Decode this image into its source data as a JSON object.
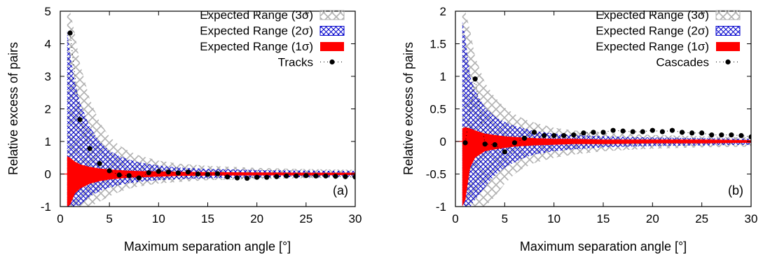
{
  "chart_data": [
    {
      "type": "line",
      "panel_label": "(a)",
      "xlabel": "Maximum separation angle [°]",
      "ylabel": "Relative excess of pairs",
      "xlim": [
        0,
        30
      ],
      "ylim": [
        -1,
        5
      ],
      "x_ticks": [
        "0",
        "5",
        "10",
        "15",
        "20",
        "25",
        "30"
      ],
      "y_ticks": [
        "-1",
        "0",
        "1",
        "2",
        "3",
        "4",
        "5"
      ],
      "grid": false,
      "legend_position": "top-right",
      "legend": [
        "Expected Range (3σ)",
        "Expected Range (2σ)",
        "Expected Range (1σ)",
        "Tracks"
      ],
      "colors": {
        "band3": "#b0b0b0",
        "band2": "#0000cc",
        "band1": "#ff0000",
        "points": "#000000"
      },
      "band_x": [
        0.7,
        1,
        1.5,
        2,
        3,
        4,
        5,
        6,
        7,
        8,
        10,
        12,
        15,
        20,
        25,
        30
      ],
      "band_1sigma": {
        "lower": [
          -1.0,
          -0.95,
          -0.6,
          -0.45,
          -0.3,
          -0.22,
          -0.17,
          -0.14,
          -0.11,
          -0.1,
          -0.08,
          -0.06,
          -0.05,
          -0.04,
          -0.04,
          -0.03
        ],
        "upper": [
          0.55,
          0.5,
          0.38,
          0.3,
          0.22,
          0.17,
          0.14,
          0.12,
          0.1,
          0.09,
          0.08,
          0.07,
          0.06,
          0.05,
          0.04,
          0.04
        ]
      },
      "band_2sigma": {
        "lower": [
          -1.0,
          -1.0,
          -1.0,
          -0.95,
          -0.7,
          -0.52,
          -0.42,
          -0.34,
          -0.28,
          -0.24,
          -0.19,
          -0.16,
          -0.13,
          -0.1,
          -0.09,
          -0.08
        ],
        "upper": [
          4.4,
          3.7,
          2.8,
          2.2,
          1.45,
          1.0,
          0.72,
          0.55,
          0.44,
          0.36,
          0.26,
          0.2,
          0.16,
          0.12,
          0.1,
          0.09
        ]
      },
      "band_3sigma": {
        "lower": [
          -1.0,
          -1.0,
          -1.0,
          -1.0,
          -1.0,
          -0.85,
          -0.68,
          -0.55,
          -0.45,
          -0.38,
          -0.29,
          -0.24,
          -0.19,
          -0.15,
          -0.13,
          -0.11
        ],
        "upper": [
          5.0,
          5.0,
          4.3,
          3.4,
          2.3,
          1.6,
          1.15,
          0.88,
          0.7,
          0.57,
          0.41,
          0.32,
          0.25,
          0.19,
          0.15,
          0.13
        ]
      },
      "series": [
        {
          "name": "Tracks",
          "x": [
            1,
            2,
            3,
            4,
            5,
            6,
            7,
            8,
            9,
            10,
            11,
            12,
            13,
            14,
            15,
            16,
            17,
            18,
            19,
            20,
            21,
            22,
            23,
            24,
            25,
            26,
            27,
            28,
            29,
            30
          ],
          "y": [
            4.33,
            1.67,
            0.78,
            0.32,
            0.1,
            -0.03,
            -0.05,
            -0.12,
            0.04,
            0.08,
            0.06,
            0.03,
            0.06,
            0.0,
            -0.01,
            0.01,
            -0.09,
            -0.12,
            -0.13,
            -0.1,
            -0.1,
            -0.08,
            -0.06,
            -0.06,
            -0.05,
            -0.06,
            -0.06,
            -0.07,
            -0.08,
            -0.09
          ]
        }
      ]
    },
    {
      "type": "line",
      "panel_label": "(b)",
      "xlabel": "Maximum separation angle [°]",
      "ylabel": "Relative excess of pairs",
      "xlim": [
        0,
        30
      ],
      "ylim": [
        -1,
        2
      ],
      "x_ticks": [
        "0",
        "5",
        "10",
        "15",
        "20",
        "25",
        "30"
      ],
      "y_ticks": [
        "-1",
        "-0.5",
        "0",
        "0.5",
        "1",
        "1.5",
        "2"
      ],
      "grid": false,
      "legend_position": "top-right",
      "legend": [
        "Expected Range (3σ)",
        "Expected Range (2σ)",
        "Expected Range (1σ)",
        "Cascades"
      ],
      "colors": {
        "band3": "#b0b0b0",
        "band2": "#0000cc",
        "band1": "#ff0000",
        "points": "#000000"
      },
      "band_x": [
        0.7,
        1,
        1.5,
        2,
        3,
        4,
        5,
        6,
        7,
        8,
        10,
        12,
        15,
        20,
        25,
        30
      ],
      "band_1sigma": {
        "lower": [
          -1.0,
          -0.9,
          -0.4,
          -0.25,
          -0.15,
          -0.12,
          -0.1,
          -0.08,
          -0.07,
          -0.06,
          -0.05,
          -0.04,
          -0.04,
          -0.03,
          -0.03,
          -0.02
        ],
        "upper": [
          0.2,
          0.22,
          0.2,
          0.17,
          0.12,
          0.1,
          0.08,
          0.07,
          0.06,
          0.05,
          0.04,
          0.04,
          0.03,
          0.03,
          0.03,
          0.02
        ]
      },
      "band_2sigma": {
        "lower": [
          -1.0,
          -1.0,
          -1.0,
          -0.9,
          -0.7,
          -0.52,
          -0.4,
          -0.32,
          -0.25,
          -0.2,
          -0.15,
          -0.12,
          -0.09,
          -0.07,
          -0.06,
          -0.05
        ],
        "upper": [
          1.85,
          1.6,
          1.0,
          0.78,
          0.52,
          0.38,
          0.3,
          0.24,
          0.2,
          0.16,
          0.12,
          0.1,
          0.08,
          0.06,
          0.05,
          0.04
        ]
      },
      "band_3sigma": {
        "lower": [
          -1.0,
          -1.0,
          -1.0,
          -1.0,
          -1.0,
          -0.85,
          -0.65,
          -0.5,
          -0.4,
          -0.33,
          -0.25,
          -0.2,
          -0.15,
          -0.11,
          -0.09,
          -0.08
        ],
        "upper": [
          2.0,
          2.0,
          1.7,
          1.3,
          0.9,
          0.68,
          0.52,
          0.42,
          0.34,
          0.29,
          0.21,
          0.17,
          0.13,
          0.1,
          0.08,
          0.06
        ]
      },
      "series": [
        {
          "name": "Cascades",
          "x": [
            1,
            2,
            3,
            4,
            5,
            6,
            7,
            8,
            9,
            10,
            11,
            12,
            13,
            14,
            15,
            16,
            17,
            18,
            19,
            20,
            21,
            22,
            23,
            24,
            25,
            26,
            27,
            28,
            29,
            30
          ],
          "y": [
            -0.02,
            0.96,
            -0.04,
            -0.05,
            -0.16,
            -0.02,
            0.05,
            0.14,
            0.09,
            0.09,
            0.09,
            0.1,
            0.13,
            0.14,
            0.14,
            0.17,
            0.16,
            0.15,
            0.15,
            0.17,
            0.15,
            0.17,
            0.14,
            0.13,
            0.13,
            0.1,
            0.1,
            0.1,
            0.09,
            0.07
          ]
        }
      ]
    }
  ]
}
